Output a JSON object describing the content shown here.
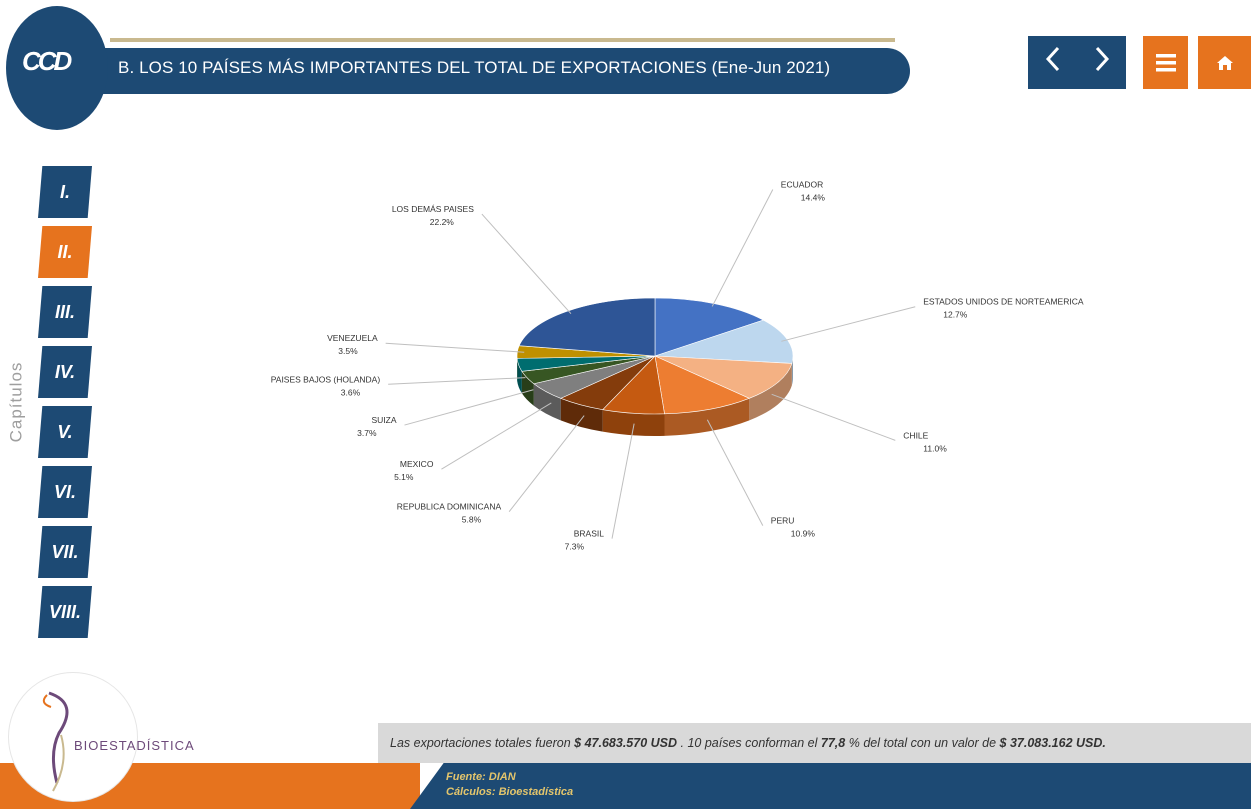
{
  "header": {
    "logo_text": "CCD",
    "title": "B. LOS 10 PAÍSES MÁS IMPORTANTES DEL TOTAL DE EXPORTACIONES (Ene-Jun 2021)"
  },
  "nav": {
    "prev_icon": "chevron-left-icon",
    "next_icon": "chevron-right-icon",
    "menu_icon": "menu-icon",
    "home_icon": "home-icon"
  },
  "sidebar": {
    "label": "Capítulos",
    "chapters": [
      {
        "label": "I.",
        "active": false
      },
      {
        "label": "II.",
        "active": true
      },
      {
        "label": "III.",
        "active": false
      },
      {
        "label": "IV.",
        "active": false
      },
      {
        "label": "V.",
        "active": false
      },
      {
        "label": "VI.",
        "active": false
      },
      {
        "label": "VII.",
        "active": false
      },
      {
        "label": "VIII.",
        "active": false
      }
    ]
  },
  "chart_data": {
    "type": "pie",
    "title": "",
    "slices": [
      {
        "label": "ECUADOR",
        "value": 14.4,
        "display": "14.4%",
        "color": "#4472c4"
      },
      {
        "label": "ESTADOS UNIDOS DE NORTEAMERICA",
        "value": 12.7,
        "display": "12.7%",
        "color": "#bdd7ee"
      },
      {
        "label": "CHILE",
        "value": 11.0,
        "display": "11.0%",
        "color": "#f4b183"
      },
      {
        "label": "PERU",
        "value": 10.9,
        "display": "10.9%",
        "color": "#ed7d31"
      },
      {
        "label": "BRASIL",
        "value": 7.3,
        "display": "7.3%",
        "color": "#c55a11"
      },
      {
        "label": "REPUBLICA DOMINICANA",
        "value": 5.8,
        "display": "5.8%",
        "color": "#843c0c"
      },
      {
        "label": "MEXICO",
        "value": 5.1,
        "display": "5.1%",
        "color": "#7f7f7f"
      },
      {
        "label": "SUIZA",
        "value": 3.7,
        "display": "3.7%",
        "color": "#375623"
      },
      {
        "label": "PAISES BAJOS (HOLANDA)",
        "value": 3.6,
        "display": "3.6%",
        "color": "#006d6f"
      },
      {
        "label": "VENEZUELA",
        "value": 3.5,
        "display": "3.5%",
        "color": "#bf9000"
      },
      {
        "label": "LOS DEMÁS PAISES",
        "value": 22.2,
        "display": "22.2%",
        "color": "#2e5596"
      }
    ]
  },
  "summary": {
    "part1": "Las exportaciones totales fueron",
    "total": "$ 47.683.570",
    "unit1": "USD",
    "part2": ". 10 países conforman el",
    "percent": "77,8",
    "part3": "% del total con un valor de",
    "value": "$ 37.083.162",
    "unit2": "USD."
  },
  "footer": {
    "source": "Fuente: DIAN",
    "calc": "Cálculos: Bioestadística",
    "brand": "BIOESTADÍSTICA"
  }
}
